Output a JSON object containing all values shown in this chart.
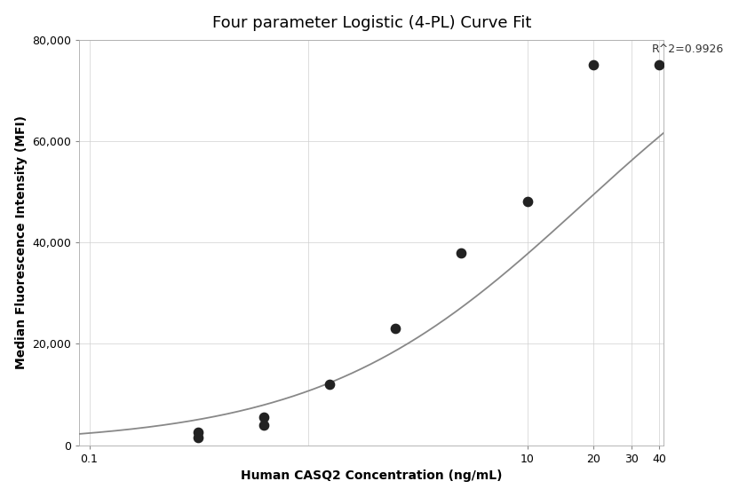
{
  "title": "Four parameter Logistic (4-PL) Curve Fit",
  "xlabel": "Human CASQ2 Concentration (ng/mL)",
  "ylabel": "Median Fluorescence Intensity (MFI)",
  "r_squared": "R^2=0.9926",
  "scatter_x": [
    0.313,
    0.313,
    0.625,
    0.625,
    1.25,
    2.5,
    5.0,
    10.0,
    20.0,
    40.0
  ],
  "scatter_y": [
    1500,
    2500,
    4000,
    5500,
    12000,
    23000,
    38000,
    48000,
    75000,
    75000
  ],
  "4pl_A": 200,
  "4pl_D": 95000,
  "4pl_C": 18.0,
  "4pl_B": 0.72,
  "scatter_color": "#222222",
  "curve_color": "#888888",
  "background_color": "#ffffff",
  "grid_color": "#d0d0d0",
  "xlim_log": [
    -1,
    1.7
  ],
  "ylim": [
    0,
    80000
  ],
  "yticks": [
    0,
    20000,
    40000,
    60000,
    80000
  ],
  "ytick_labels": [
    "0",
    "20,000",
    "40,000",
    "60,000",
    "80,000"
  ],
  "title_fontsize": 13,
  "label_fontsize": 10,
  "tick_fontsize": 9,
  "annotation_fontsize": 9,
  "scatter_size": 55,
  "curve_linewidth": 1.3
}
